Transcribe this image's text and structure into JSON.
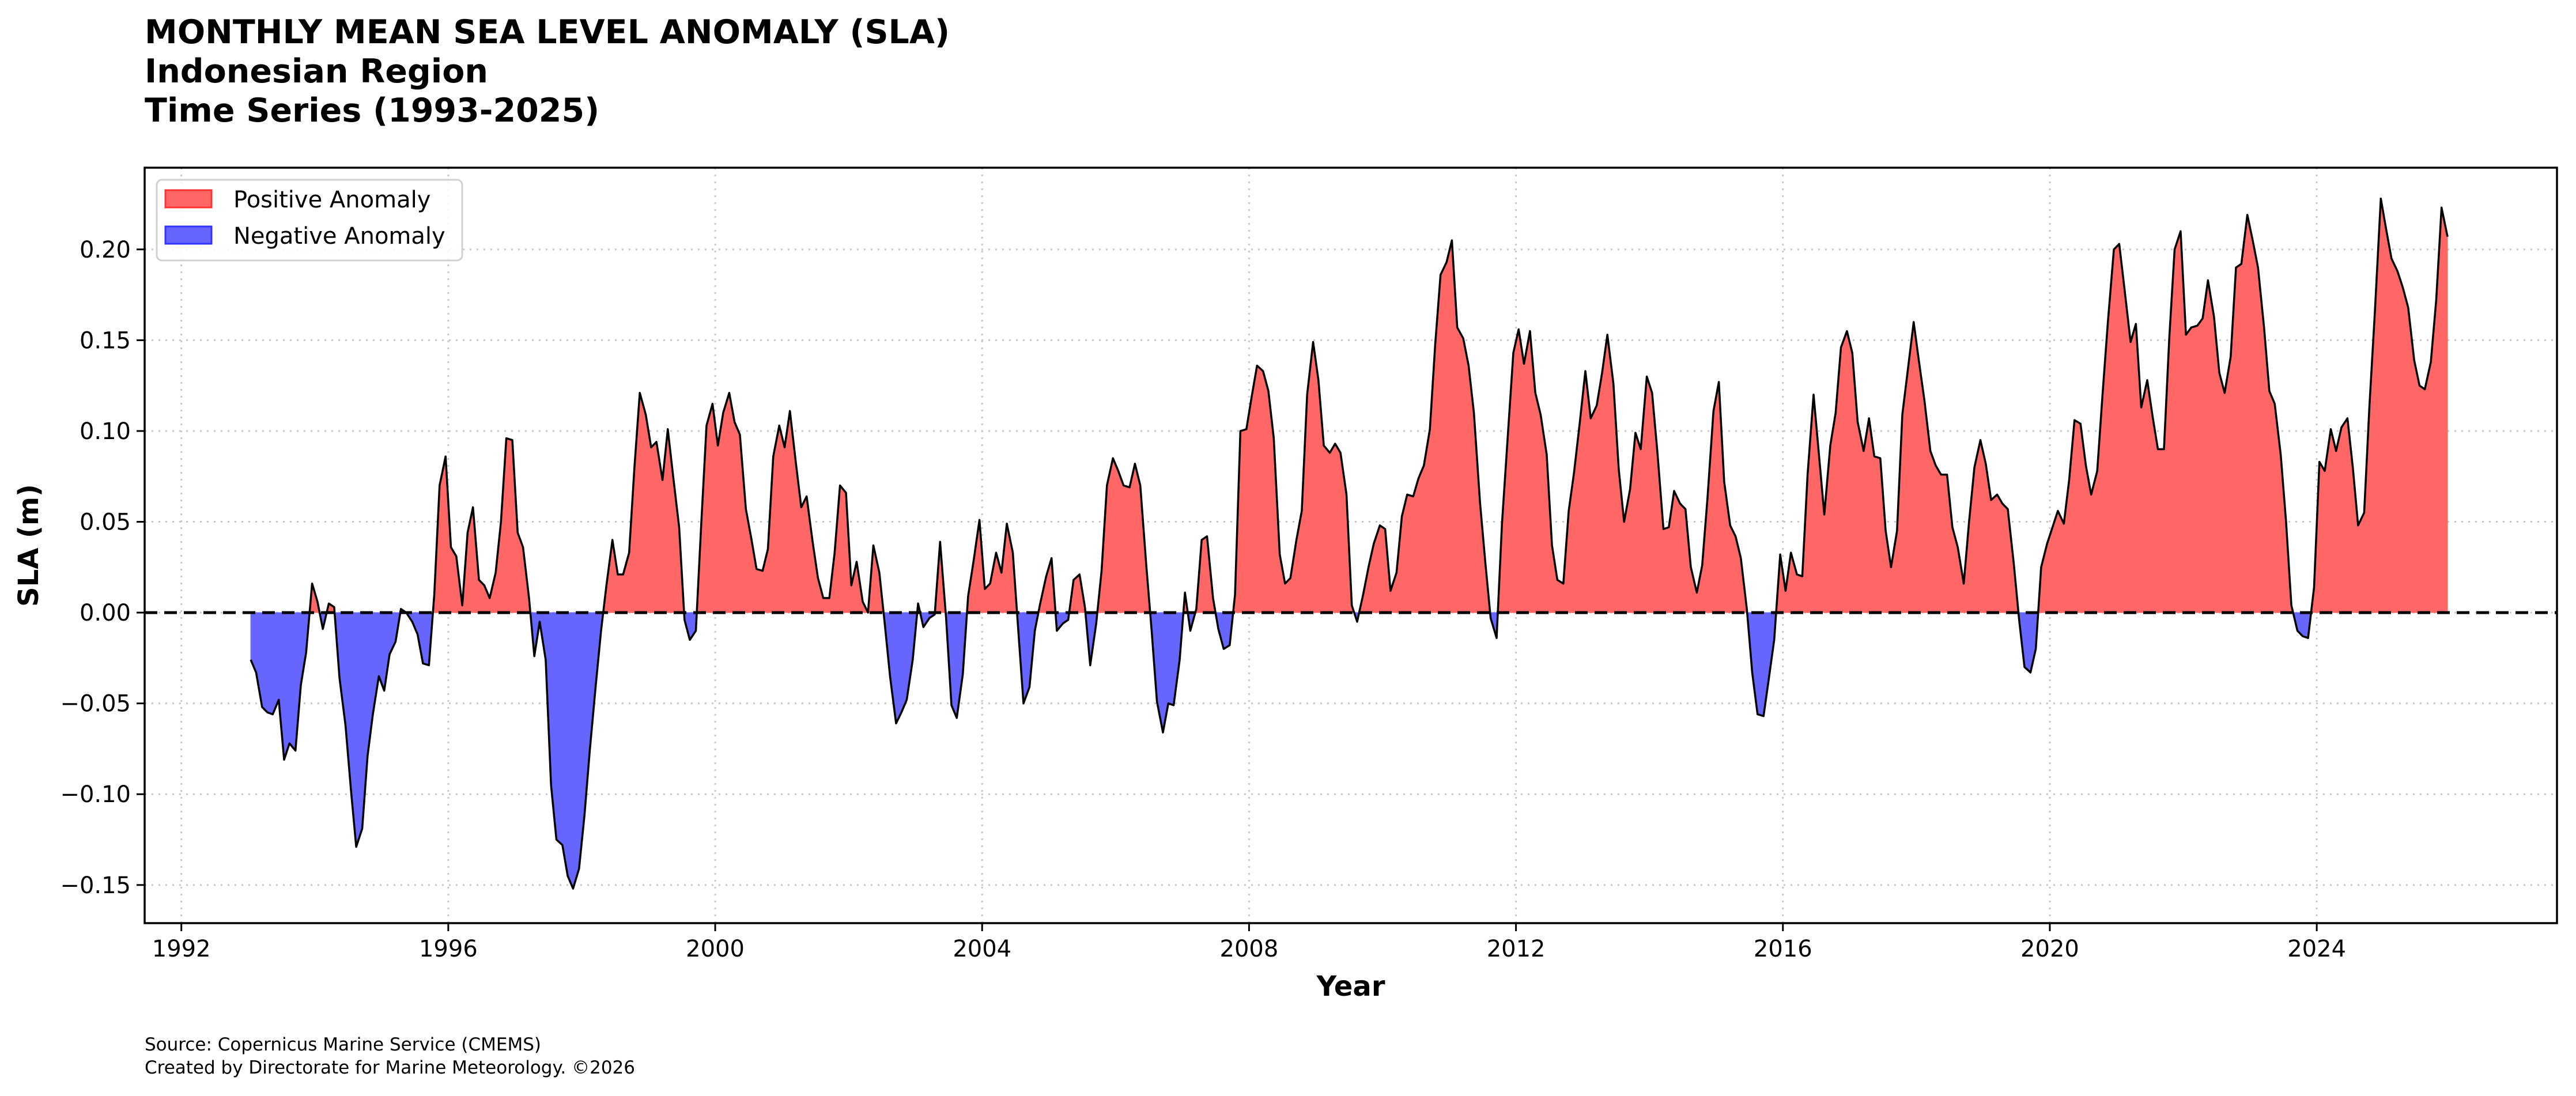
{
  "title": {
    "line1": "MONTHLY MEAN SEA LEVEL ANOMALY (SLA)",
    "line2": "Indonesian Region",
    "line3": "Time Series (1993-2025)"
  },
  "footer": {
    "source": "Source: Copernicus Marine Service (CMEMS)",
    "credit": "Created by Directorate for Marine Meteorology. ©2026"
  },
  "colors": {
    "positive": "#ff6666",
    "negative": "#6666ff",
    "line": "#000000",
    "grid": "#c8c8c8"
  },
  "chart_data": {
    "type": "area",
    "xlabel": "Year",
    "ylabel": "SLA (m)",
    "xlim": [
      1991.45,
      2027.6
    ],
    "ylim": [
      -0.171,
      0.245
    ],
    "xticks": [
      1992,
      1996,
      2000,
      2004,
      2008,
      2012,
      2016,
      2020,
      2024
    ],
    "xtick_labels": [
      "1992",
      "1996",
      "2000",
      "2004",
      "2008",
      "2012",
      "2016",
      "2020",
      "2024"
    ],
    "yticks": [
      -0.15,
      -0.1,
      -0.05,
      0.0,
      0.05,
      0.1,
      0.15,
      0.2
    ],
    "ytick_labels": [
      "−0.15",
      "−0.10",
      "−0.05",
      "0.00",
      "0.05",
      "0.10",
      "0.15",
      "0.20"
    ],
    "grid": true,
    "reference_line": 0.0,
    "legend": {
      "position": "top-left",
      "entries": [
        "Positive Anomaly",
        "Negative Anomaly"
      ]
    },
    "series": [
      {
        "name": "SLA",
        "x": [
          1993.04,
          1993.12,
          1993.21,
          1993.29,
          1993.37,
          1993.46,
          1993.54,
          1993.62,
          1993.71,
          1993.79,
          1993.87,
          1993.96,
          1994.04,
          1994.12,
          1994.21,
          1994.29,
          1994.37,
          1994.46,
          1994.54,
          1994.62,
          1994.71,
          1994.79,
          1994.87,
          1994.96,
          1995.04,
          1995.12,
          1995.21,
          1995.29,
          1995.37,
          1995.46,
          1995.54,
          1995.62,
          1995.71,
          1995.79,
          1995.87,
          1995.96,
          1996.04,
          1996.12,
          1996.21,
          1996.29,
          1996.37,
          1996.46,
          1996.54,
          1996.62,
          1996.71,
          1996.79,
          1996.87,
          1996.96,
          1997.04,
          1997.12,
          1997.21,
          1997.29,
          1997.37,
          1997.46,
          1997.54,
          1997.62,
          1997.71,
          1997.79,
          1997.87,
          1997.96,
          1998.04,
          1998.12,
          1998.21,
          1998.29,
          1998.37,
          1998.46,
          1998.54,
          1998.62,
          1998.71,
          1998.79,
          1998.87,
          1998.96,
          1999.04,
          1999.12,
          1999.21,
          1999.29,
          1999.37,
          1999.46,
          1999.54,
          1999.62,
          1999.71,
          1999.79,
          1999.87,
          1999.96,
          2000.04,
          2000.12,
          2000.21,
          2000.29,
          2000.37,
          2000.46,
          2000.54,
          2000.62,
          2000.71,
          2000.79,
          2000.87,
          2000.96,
          2001.04,
          2001.12,
          2001.21,
          2001.29,
          2001.37,
          2001.46,
          2001.54,
          2001.62,
          2001.71,
          2001.79,
          2001.87,
          2001.96,
          2002.04,
          2002.12,
          2002.21,
          2002.29,
          2002.37,
          2002.46,
          2002.54,
          2002.62,
          2002.71,
          2002.79,
          2002.87,
          2002.96,
          2003.04,
          2003.12,
          2003.21,
          2003.29,
          2003.37,
          2003.46,
          2003.54,
          2003.62,
          2003.71,
          2003.79,
          2003.87,
          2003.96,
          2004.04,
          2004.12,
          2004.21,
          2004.29,
          2004.37,
          2004.46,
          2004.54,
          2004.62,
          2004.71,
          2004.79,
          2004.87,
          2004.96,
          2005.04,
          2005.12,
          2005.21,
          2005.29,
          2005.37,
          2005.46,
          2005.54,
          2005.62,
          2005.71,
          2005.79,
          2005.87,
          2005.96,
          2006.04,
          2006.12,
          2006.21,
          2006.29,
          2006.37,
          2006.46,
          2006.54,
          2006.62,
          2006.71,
          2006.79,
          2006.87,
          2006.96,
          2007.04,
          2007.12,
          2007.21,
          2007.29,
          2007.37,
          2007.46,
          2007.54,
          2007.62,
          2007.71,
          2007.79,
          2007.87,
          2007.96,
          2008.04,
          2008.12,
          2008.21,
          2008.29,
          2008.37,
          2008.46,
          2008.54,
          2008.62,
          2008.71,
          2008.79,
          2008.87,
          2008.96,
          2009.04,
          2009.12,
          2009.21,
          2009.29,
          2009.37,
          2009.46,
          2009.54,
          2009.62,
          2009.71,
          2009.79,
          2009.87,
          2009.96,
          2010.04,
          2010.12,
          2010.21,
          2010.29,
          2010.37,
          2010.46,
          2010.54,
          2010.62,
          2010.71,
          2010.79,
          2010.87,
          2010.96,
          2011.04,
          2011.12,
          2011.21,
          2011.29,
          2011.37,
          2011.46,
          2011.54,
          2011.62,
          2011.71,
          2011.79,
          2011.87,
          2011.96,
          2012.04,
          2012.12,
          2012.21,
          2012.29,
          2012.37,
          2012.46,
          2012.54,
          2012.62,
          2012.71,
          2012.79,
          2012.87,
          2012.96,
          2013.04,
          2013.12,
          2013.21,
          2013.29,
          2013.37,
          2013.46,
          2013.54,
          2013.62,
          2013.71,
          2013.79,
          2013.87,
          2013.96,
          2014.04,
          2014.12,
          2014.21,
          2014.29,
          2014.37,
          2014.46,
          2014.54,
          2014.62,
          2014.71,
          2014.79,
          2014.87,
          2014.96,
          2015.04,
          2015.12,
          2015.21,
          2015.29,
          2015.37,
          2015.46,
          2015.54,
          2015.62,
          2015.71,
          2015.79,
          2015.87,
          2015.96,
          2016.04,
          2016.12,
          2016.21,
          2016.29,
          2016.37,
          2016.46,
          2016.54,
          2016.62,
          2016.71,
          2016.79,
          2016.87,
          2016.96,
          2017.04,
          2017.12,
          2017.21,
          2017.29,
          2017.37,
          2017.46,
          2017.54,
          2017.62,
          2017.71,
          2017.79,
          2017.87,
          2017.96,
          2018.04,
          2018.12,
          2018.21,
          2018.29,
          2018.37,
          2018.46,
          2018.54,
          2018.62,
          2018.71,
          2018.79,
          2018.87,
          2018.96,
          2019.04,
          2019.12,
          2019.21,
          2019.29,
          2019.37,
          2019.46,
          2019.54,
          2019.62,
          2019.71,
          2019.79,
          2019.87,
          2019.96,
          2020.04,
          2020.12,
          2020.21,
          2020.29,
          2020.37,
          2020.46,
          2020.54,
          2020.62,
          2020.71,
          2020.79,
          2020.87,
          2020.96,
          2021.04,
          2021.12,
          2021.21,
          2021.29,
          2021.37,
          2021.46,
          2021.54,
          2021.62,
          2021.71,
          2021.79,
          2021.87,
          2021.96,
          2022.04,
          2022.12,
          2022.21,
          2022.29,
          2022.37,
          2022.46,
          2022.54,
          2022.62,
          2022.71,
          2022.79,
          2022.87,
          2022.96,
          2023.04,
          2023.12,
          2023.21,
          2023.29,
          2023.37,
          2023.46,
          2023.54,
          2023.62,
          2023.71,
          2023.79,
          2023.87,
          2023.96,
          2024.04,
          2024.12,
          2024.21,
          2024.29,
          2024.37,
          2024.46,
          2024.54,
          2024.62,
          2024.71,
          2024.79,
          2024.87,
          2024.96,
          2025.04,
          2025.12,
          2025.21,
          2025.29,
          2025.37,
          2025.46,
          2025.54,
          2025.62,
          2025.71,
          2025.79,
          2025.87,
          2025.96
        ],
        "values": [
          -0.026,
          -0.033,
          -0.052,
          -0.055,
          -0.056,
          -0.048,
          -0.081,
          -0.072,
          -0.076,
          -0.04,
          -0.022,
          0.016,
          0.006,
          -0.009,
          0.005,
          0.003,
          -0.036,
          -0.062,
          -0.097,
          -0.129,
          -0.119,
          -0.079,
          -0.056,
          -0.035,
          -0.043,
          -0.023,
          -0.016,
          0.002,
          0.0,
          -0.005,
          -0.012,
          -0.028,
          -0.029,
          0.01,
          0.07,
          0.086,
          0.036,
          0.031,
          0.004,
          0.044,
          0.058,
          0.018,
          0.015,
          0.008,
          0.022,
          0.05,
          0.096,
          0.095,
          0.044,
          0.036,
          0.008,
          -0.024,
          -0.005,
          -0.026,
          -0.095,
          -0.125,
          -0.128,
          -0.145,
          -0.152,
          -0.141,
          -0.112,
          -0.076,
          -0.04,
          -0.01,
          0.015,
          0.04,
          0.021,
          0.021,
          0.033,
          0.08,
          0.121,
          0.109,
          0.091,
          0.094,
          0.073,
          0.101,
          0.075,
          0.047,
          -0.004,
          -0.015,
          -0.01,
          0.048,
          0.103,
          0.115,
          0.092,
          0.11,
          0.121,
          0.105,
          0.098,
          0.057,
          0.041,
          0.024,
          0.023,
          0.035,
          0.086,
          0.103,
          0.091,
          0.111,
          0.082,
          0.058,
          0.064,
          0.039,
          0.019,
          0.008,
          0.008,
          0.033,
          0.07,
          0.066,
          0.015,
          0.028,
          0.006,
          0.0,
          0.037,
          0.022,
          -0.006,
          -0.035,
          -0.061,
          -0.055,
          -0.048,
          -0.026,
          0.005,
          -0.008,
          -0.003,
          -0.001,
          0.039,
          -0.003,
          -0.051,
          -0.058,
          -0.034,
          0.009,
          0.028,
          0.051,
          0.013,
          0.016,
          0.033,
          0.022,
          0.049,
          0.033,
          -0.009,
          -0.05,
          -0.041,
          -0.01,
          0.005,
          0.02,
          0.03,
          -0.01,
          -0.006,
          -0.004,
          0.018,
          0.021,
          0.003,
          -0.029,
          -0.006,
          0.023,
          0.07,
          0.085,
          0.078,
          0.07,
          0.069,
          0.082,
          0.07,
          0.026,
          -0.01,
          -0.049,
          -0.066,
          -0.05,
          -0.051,
          -0.026,
          0.011,
          -0.01,
          0.002,
          0.04,
          0.042,
          0.008,
          -0.009,
          -0.02,
          -0.018,
          0.01,
          0.1,
          0.101,
          0.119,
          0.136,
          0.133,
          0.122,
          0.096,
          0.032,
          0.016,
          0.019,
          0.04,
          0.056,
          0.12,
          0.149,
          0.128,
          0.092,
          0.088,
          0.093,
          0.088,
          0.065,
          0.004,
          -0.005,
          0.01,
          0.025,
          0.038,
          0.048,
          0.046,
          0.012,
          0.022,
          0.053,
          0.065,
          0.064,
          0.074,
          0.081,
          0.101,
          0.148,
          0.186,
          0.193,
          0.205,
          0.157,
          0.151,
          0.136,
          0.11,
          0.061,
          0.028,
          -0.003,
          -0.014,
          0.049,
          0.093,
          0.143,
          0.156,
          0.137,
          0.155,
          0.121,
          0.109,
          0.087,
          0.037,
          0.018,
          0.016,
          0.056,
          0.077,
          0.106,
          0.133,
          0.107,
          0.114,
          0.132,
          0.153,
          0.126,
          0.079,
          0.05,
          0.068,
          0.099,
          0.09,
          0.13,
          0.121,
          0.088,
          0.046,
          0.047,
          0.067,
          0.06,
          0.057,
          0.025,
          0.011,
          0.026,
          0.063,
          0.111,
          0.127,
          0.072,
          0.048,
          0.042,
          0.03,
          0.002,
          -0.033,
          -0.056,
          -0.057,
          -0.036,
          -0.015,
          0.032,
          0.012,
          0.033,
          0.021,
          0.02,
          0.076,
          0.12,
          0.087,
          0.054,
          0.092,
          0.11,
          0.146,
          0.155,
          0.143,
          0.105,
          0.089,
          0.107,
          0.086,
          0.085,
          0.045,
          0.025,
          0.045,
          0.109,
          0.133,
          0.16,
          0.138,
          0.117,
          0.089,
          0.081,
          0.076,
          0.076,
          0.047,
          0.036,
          0.016,
          0.05,
          0.08,
          0.095,
          0.082,
          0.062,
          0.065,
          0.06,
          0.057,
          0.027,
          -0.004,
          -0.03,
          -0.033,
          -0.02,
          0.025,
          0.038,
          0.047,
          0.056,
          0.049,
          0.073,
          0.106,
          0.104,
          0.081,
          0.065,
          0.078,
          0.12,
          0.16,
          0.2,
          0.203,
          0.178,
          0.149,
          0.159,
          0.113,
          0.128,
          0.108,
          0.09,
          0.09,
          0.151,
          0.2,
          0.21,
          0.153,
          0.157,
          0.158,
          0.162,
          0.183,
          0.163,
          0.132,
          0.121,
          0.141,
          0.19,
          0.192,
          0.219,
          0.205,
          0.19,
          0.157,
          0.122,
          0.115,
          0.087,
          0.05,
          0.004,
          -0.01,
          -0.013,
          -0.014,
          0.014,
          0.083,
          0.078,
          0.101,
          0.089,
          0.102,
          0.107,
          0.08,
          0.048,
          0.055,
          0.114,
          0.165,
          0.228,
          0.211,
          0.195,
          0.188,
          0.179,
          0.168,
          0.139,
          0.125,
          0.123,
          0.138,
          0.172,
          0.223,
          0.207
        ]
      }
    ]
  }
}
